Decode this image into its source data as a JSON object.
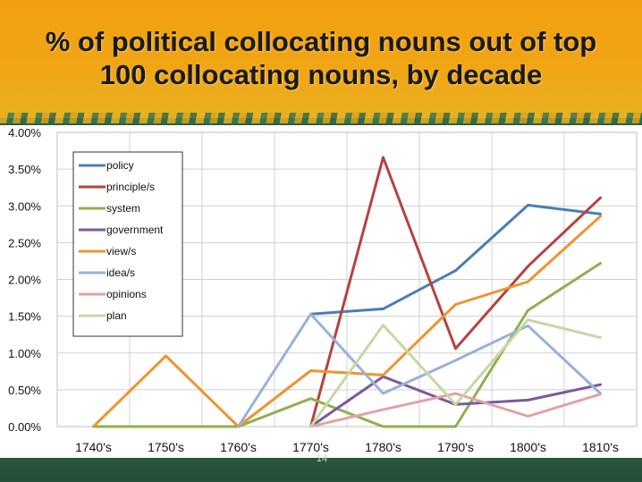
{
  "slide": {
    "title_line1": "% of political collocating nouns out of top",
    "title_line2": "100 collocating nouns, by decade",
    "page_number": "14"
  },
  "chart_data": {
    "type": "line",
    "title": "% of political collocating nouns out of top 100 collocating nouns, by decade",
    "xlabel": "",
    "ylabel": "",
    "categories": [
      "1740's",
      "1750's",
      "1760's",
      "1770's",
      "1780's",
      "1790's",
      "1800's",
      "1810's"
    ],
    "y_tick_labels": [
      "0.00%",
      "0.50%",
      "1.00%",
      "1.50%",
      "2.00%",
      "2.50%",
      "3.00%",
      "3.50%",
      "4.00%"
    ],
    "ylim": [
      0,
      4
    ],
    "grid": true,
    "legend_position": "top-left",
    "series": [
      {
        "name": "policy",
        "color": "#4a7eb6",
        "values": [
          null,
          null,
          null,
          1.53,
          1.6,
          2.12,
          3.01,
          2.89
        ]
      },
      {
        "name": "principle/s",
        "color": "#b6423e",
        "values": [
          null,
          null,
          null,
          0.0,
          3.66,
          1.06,
          2.18,
          3.11
        ]
      },
      {
        "name": "system",
        "color": "#8fb04f",
        "values": [
          0.0,
          0.0,
          0.0,
          0.38,
          0.0,
          0.0,
          1.58,
          2.22
        ]
      },
      {
        "name": "government",
        "color": "#7a5a9c",
        "values": [
          null,
          null,
          null,
          0.0,
          0.68,
          0.3,
          0.36,
          0.57
        ]
      },
      {
        "name": "view/s",
        "color": "#ef9331",
        "values": [
          0.0,
          0.96,
          0.0,
          0.76,
          0.7,
          1.66,
          1.97,
          2.86
        ]
      },
      {
        "name": "idea/s",
        "color": "#97b2d6",
        "values": [
          null,
          null,
          0.0,
          1.53,
          0.45,
          0.9,
          1.37,
          0.45
        ]
      },
      {
        "name": "opinions",
        "color": "#e0a3a3",
        "values": [
          null,
          null,
          null,
          0.0,
          0.23,
          0.45,
          0.14,
          0.44
        ]
      },
      {
        "name": "plan",
        "color": "#c5d8a4",
        "values": [
          null,
          null,
          null,
          0.0,
          1.38,
          0.3,
          1.45,
          1.21
        ]
      }
    ]
  }
}
